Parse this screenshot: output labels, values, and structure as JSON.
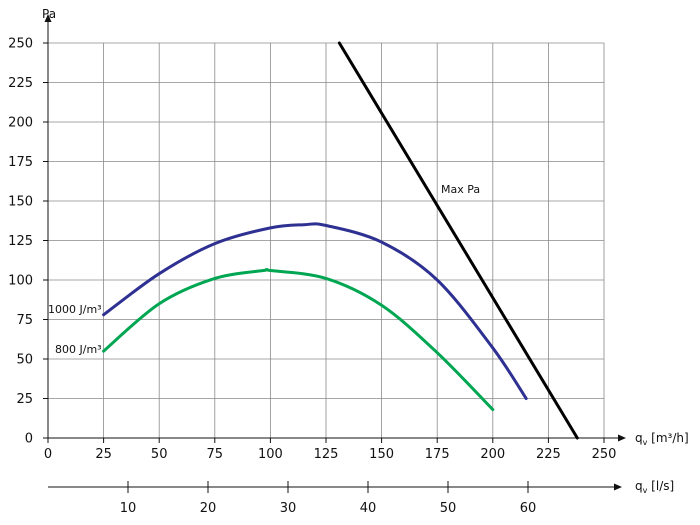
{
  "chart_data": {
    "type": "line",
    "title": "",
    "ylabel": "Pa",
    "ylim": [
      0,
      250
    ],
    "yticks": [
      0,
      25,
      50,
      75,
      100,
      125,
      150,
      175,
      200,
      225,
      250
    ],
    "xlabel": "qv [m³/h]",
    "xlabel_parts": {
      "base": "q",
      "sub": "v",
      "rest": "[m³/h]"
    },
    "xlim": [
      0,
      250
    ],
    "xticks": [
      0,
      25,
      50,
      75,
      100,
      125,
      150,
      175,
      200,
      225,
      250
    ],
    "x2label": "qv [l/s]",
    "x2label_parts": {
      "base": "q",
      "sub": "v",
      "rest": "[l/s]"
    },
    "x2ticks": [
      10,
      20,
      30,
      40,
      50,
      60
    ],
    "grid": true,
    "series": [
      {
        "name": "1000 J/m³",
        "color": "#2e3192",
        "x": [
          25,
          50,
          75,
          100,
          115,
          125,
          150,
          175,
          200,
          215
        ],
        "y": [
          78,
          104,
          123,
          133,
          135,
          134.5,
          124,
          100,
          57,
          25
        ]
      },
      {
        "name": "800 J/m³",
        "color": "#00a651",
        "x": [
          25,
          50,
          75,
          97,
          100,
          125,
          150,
          175,
          200
        ],
        "y": [
          55,
          85,
          101,
          106,
          106,
          101,
          84,
          54,
          18
        ]
      },
      {
        "name": "Max Pa",
        "color": "#000000",
        "x": [
          131,
          238
        ],
        "y": [
          250,
          0
        ]
      }
    ]
  }
}
